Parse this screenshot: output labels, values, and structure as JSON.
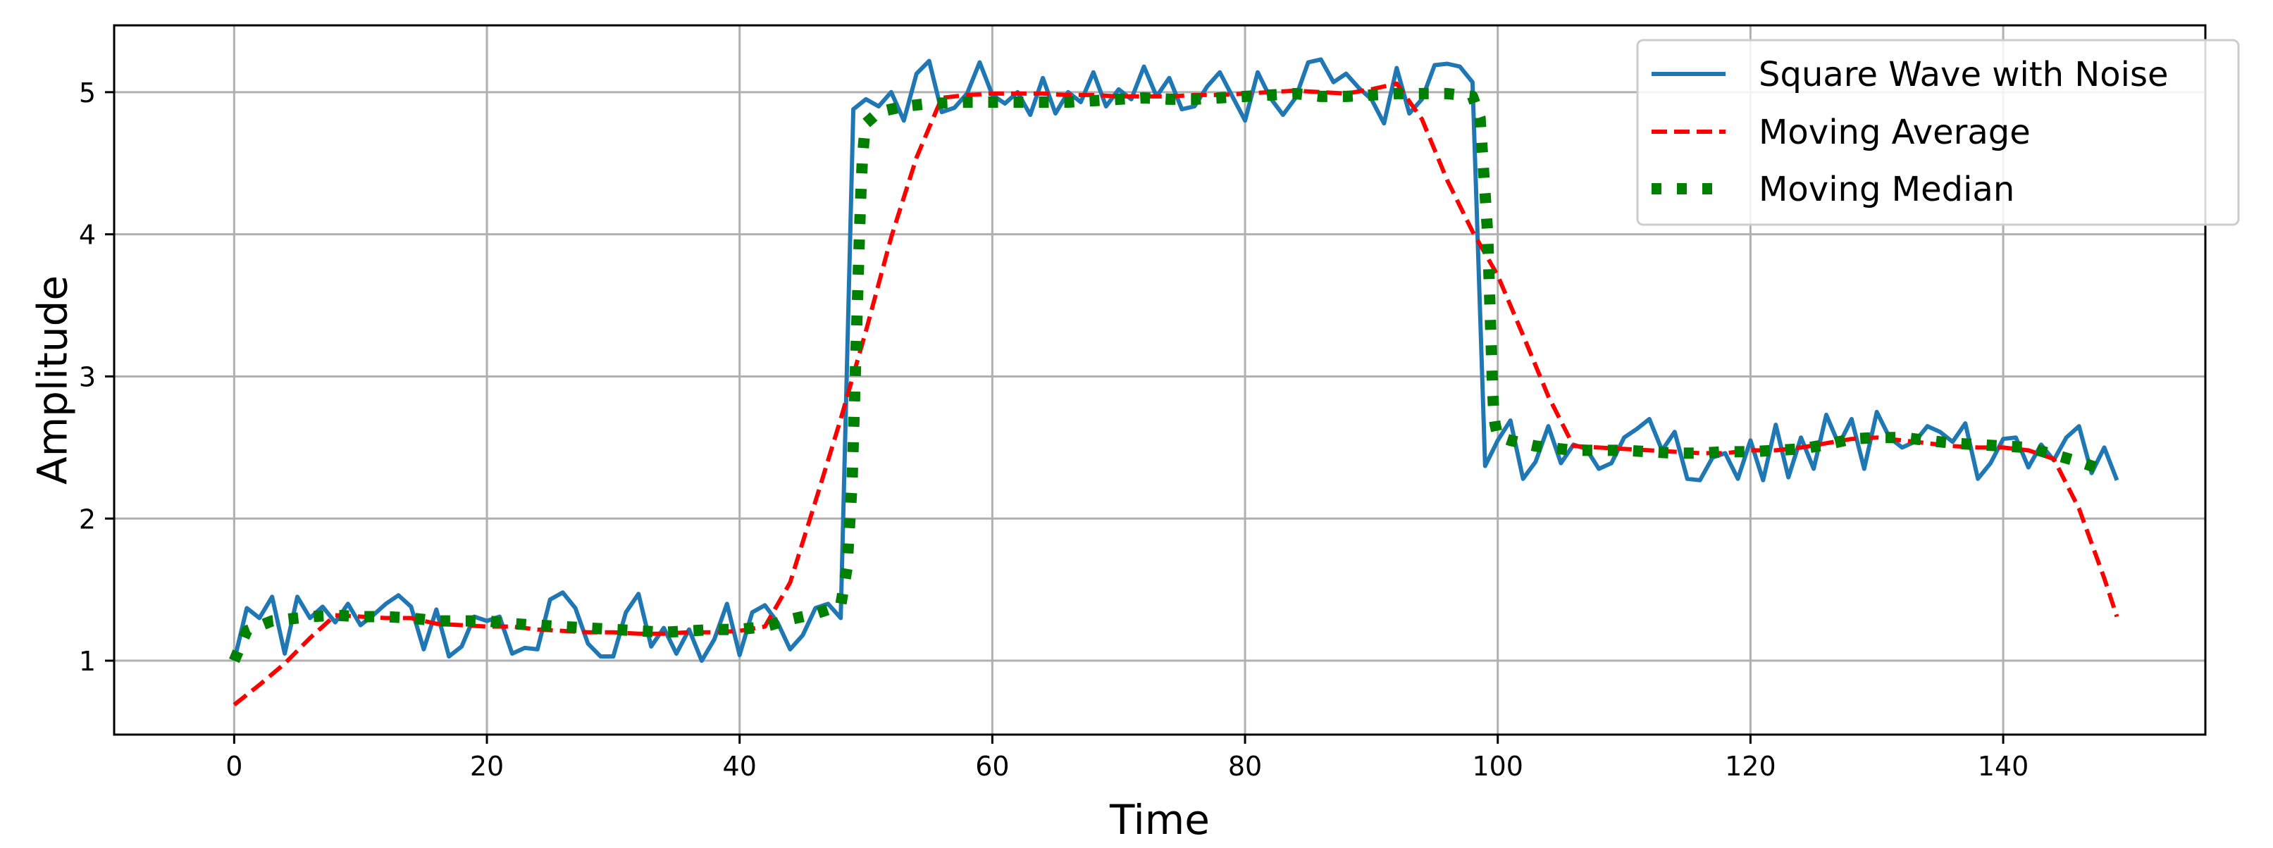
{
  "chart_data": {
    "type": "line",
    "title": "",
    "xlabel": "Time",
    "ylabel": "Amplitude",
    "xlim": [
      -9.5,
      156
    ],
    "ylim": [
      0.48,
      5.47
    ],
    "grid": true,
    "legend_position": "top-right",
    "xticks": [
      0,
      20,
      40,
      60,
      80,
      100,
      120,
      140
    ],
    "yticks": [
      1,
      2,
      3,
      4,
      5
    ],
    "series": [
      {
        "name": "Square Wave with Noise",
        "color": "#1f77b4",
        "style": "solid",
        "x": [
          0,
          1,
          2,
          3,
          4,
          5,
          6,
          7,
          8,
          9,
          10,
          11,
          12,
          13,
          14,
          15,
          16,
          17,
          18,
          19,
          20,
          21,
          22,
          23,
          24,
          25,
          26,
          27,
          28,
          29,
          30,
          31,
          32,
          33,
          34,
          35,
          36,
          37,
          38,
          39,
          40,
          41,
          42,
          43,
          44,
          45,
          46,
          47,
          48,
          49,
          50,
          51,
          52,
          53,
          54,
          55,
          56,
          57,
          58,
          59,
          60,
          61,
          62,
          63,
          64,
          65,
          66,
          67,
          68,
          69,
          70,
          71,
          72,
          73,
          74,
          75,
          76,
          77,
          78,
          79,
          80,
          81,
          82,
          83,
          84,
          85,
          86,
          87,
          88,
          89,
          90,
          91,
          92,
          93,
          94,
          95,
          96,
          97,
          98,
          99,
          100,
          101,
          102,
          103,
          104,
          105,
          106,
          107,
          108,
          109,
          110,
          111,
          112,
          113,
          114,
          115,
          116,
          117,
          118,
          119,
          120,
          121,
          122,
          123,
          124,
          125,
          126,
          127,
          128,
          129,
          130,
          131,
          132,
          133,
          134,
          135,
          136,
          137,
          138,
          139,
          140,
          141,
          142,
          143,
          144,
          145,
          146,
          147,
          148,
          149
        ],
        "values": [
          1.0,
          1.37,
          1.3,
          1.45,
          1.05,
          1.45,
          1.3,
          1.38,
          1.27,
          1.4,
          1.25,
          1.32,
          1.4,
          1.46,
          1.38,
          1.08,
          1.36,
          1.03,
          1.1,
          1.31,
          1.28,
          1.31,
          1.05,
          1.09,
          1.08,
          1.43,
          1.48,
          1.37,
          1.12,
          1.03,
          1.03,
          1.34,
          1.47,
          1.1,
          1.23,
          1.05,
          1.22,
          1.0,
          1.15,
          1.4,
          1.04,
          1.34,
          1.39,
          1.27,
          1.08,
          1.18,
          1.37,
          1.4,
          1.3,
          4.88,
          4.95,
          4.9,
          5.0,
          4.8,
          5.13,
          5.22,
          4.86,
          4.89,
          4.99,
          5.21,
          4.98,
          4.92,
          5.0,
          4.84,
          5.1,
          4.85,
          5.0,
          4.93,
          5.14,
          4.9,
          5.02,
          4.95,
          5.18,
          4.97,
          5.1,
          4.88,
          4.9,
          5.04,
          5.14,
          4.97,
          4.8,
          5.14,
          4.96,
          4.84,
          4.96,
          5.21,
          5.23,
          5.07,
          5.13,
          5.03,
          4.95,
          4.78,
          5.17,
          4.85,
          4.95,
          5.19,
          5.2,
          5.18,
          5.07,
          2.37,
          2.55,
          2.69,
          2.28,
          2.4,
          2.65,
          2.39,
          2.52,
          2.49,
          2.35,
          2.39,
          2.57,
          2.63,
          2.7,
          2.48,
          2.61,
          2.28,
          2.27,
          2.43,
          2.46,
          2.28,
          2.55,
          2.27,
          2.66,
          2.29,
          2.57,
          2.35,
          2.73,
          2.52,
          2.7,
          2.35,
          2.75,
          2.57,
          2.5,
          2.54,
          2.65,
          2.61,
          2.54,
          2.67,
          2.28,
          2.39,
          2.56,
          2.57,
          2.36,
          2.52,
          2.41,
          2.57,
          2.65,
          2.32,
          2.5,
          2.27
        ]
      },
      {
        "name": "Moving Average",
        "color": "#ff0000",
        "style": "dashed",
        "x": [
          0,
          2,
          4,
          6,
          8,
          10,
          12,
          14,
          16,
          18,
          20,
          22,
          24,
          26,
          28,
          30,
          32,
          34,
          36,
          38,
          40,
          42,
          44,
          46,
          48,
          50,
          52,
          54,
          56,
          58,
          60,
          62,
          64,
          66,
          68,
          70,
          72,
          74,
          76,
          78,
          80,
          82,
          84,
          86,
          88,
          90,
          92,
          94,
          96,
          98,
          100,
          102,
          104,
          106,
          108,
          110,
          112,
          114,
          116,
          118,
          120,
          122,
          124,
          126,
          128,
          130,
          132,
          134,
          136,
          138,
          140,
          142,
          144,
          146,
          148,
          149
        ],
        "values": [
          0.69,
          0.83,
          0.98,
          1.16,
          1.32,
          1.31,
          1.3,
          1.3,
          1.26,
          1.25,
          1.24,
          1.24,
          1.22,
          1.21,
          1.2,
          1.2,
          1.19,
          1.19,
          1.2,
          1.2,
          1.21,
          1.24,
          1.55,
          2.12,
          2.7,
          3.32,
          3.98,
          4.54,
          4.96,
          4.98,
          4.99,
          4.99,
          4.99,
          4.98,
          4.98,
          4.97,
          4.97,
          4.97,
          4.98,
          4.98,
          4.99,
          5.0,
          5.01,
          5.0,
          4.99,
          5.02,
          5.06,
          4.81,
          4.38,
          4.02,
          3.71,
          3.29,
          2.86,
          2.51,
          2.5,
          2.49,
          2.48,
          2.47,
          2.46,
          2.46,
          2.48,
          2.48,
          2.5,
          2.53,
          2.56,
          2.57,
          2.55,
          2.53,
          2.51,
          2.5,
          2.5,
          2.48,
          2.42,
          2.07,
          1.58,
          1.31
        ]
      },
      {
        "name": "Moving Median",
        "color": "#008000",
        "style": "dotted",
        "x": [
          0,
          1,
          3,
          6,
          8,
          10,
          12,
          14,
          16,
          18,
          20,
          22,
          24,
          26,
          28,
          30,
          32,
          34,
          36,
          38,
          40,
          42,
          44,
          46,
          47,
          48,
          48.5,
          48.7,
          48.9,
          49.0,
          49.1,
          49.2,
          49.3,
          49.4,
          49.5,
          49.6,
          49.7,
          49.8,
          49.9,
          50,
          51,
          53,
          55,
          58,
          60,
          62,
          64,
          66,
          68,
          70,
          72,
          74,
          76,
          78,
          80,
          82,
          84,
          86,
          88,
          90,
          92,
          94,
          96,
          98,
          98.6,
          98.8,
          99.0,
          99.2,
          99.3,
          99.4,
          99.5,
          99.6,
          99.7,
          99.8,
          99.9,
          100,
          101,
          103,
          106,
          108,
          110,
          112,
          114,
          116,
          118,
          120,
          122,
          124,
          126,
          128,
          130,
          132,
          134,
          136,
          138,
          140,
          142,
          144,
          146,
          148
        ],
        "values": [
          1.0,
          1.21,
          1.28,
          1.31,
          1.32,
          1.31,
          1.31,
          1.3,
          1.28,
          1.28,
          1.28,
          1.26,
          1.25,
          1.24,
          1.23,
          1.22,
          1.21,
          1.2,
          1.21,
          1.22,
          1.22,
          1.24,
          1.29,
          1.33,
          1.36,
          1.39,
          1.65,
          1.95,
          2.25,
          2.55,
          2.85,
          3.15,
          3.45,
          3.75,
          4.05,
          4.3,
          4.5,
          4.62,
          4.72,
          4.78,
          4.86,
          4.9,
          4.92,
          4.93,
          4.93,
          4.93,
          4.93,
          4.93,
          4.94,
          4.95,
          4.96,
          4.95,
          4.95,
          4.96,
          4.97,
          4.98,
          4.99,
          4.97,
          4.97,
          4.98,
          4.99,
          4.99,
          4.99,
          4.97,
          4.82,
          4.55,
          4.28,
          4.0,
          3.72,
          3.44,
          3.16,
          2.9,
          2.72,
          2.66,
          2.62,
          2.58,
          2.55,
          2.51,
          2.48,
          2.48,
          2.48,
          2.47,
          2.46,
          2.46,
          2.47,
          2.47,
          2.48,
          2.49,
          2.52,
          2.56,
          2.57,
          2.57,
          2.55,
          2.53,
          2.52,
          2.51,
          2.5,
          2.45,
          2.4,
          2.34
        ]
      }
    ]
  }
}
